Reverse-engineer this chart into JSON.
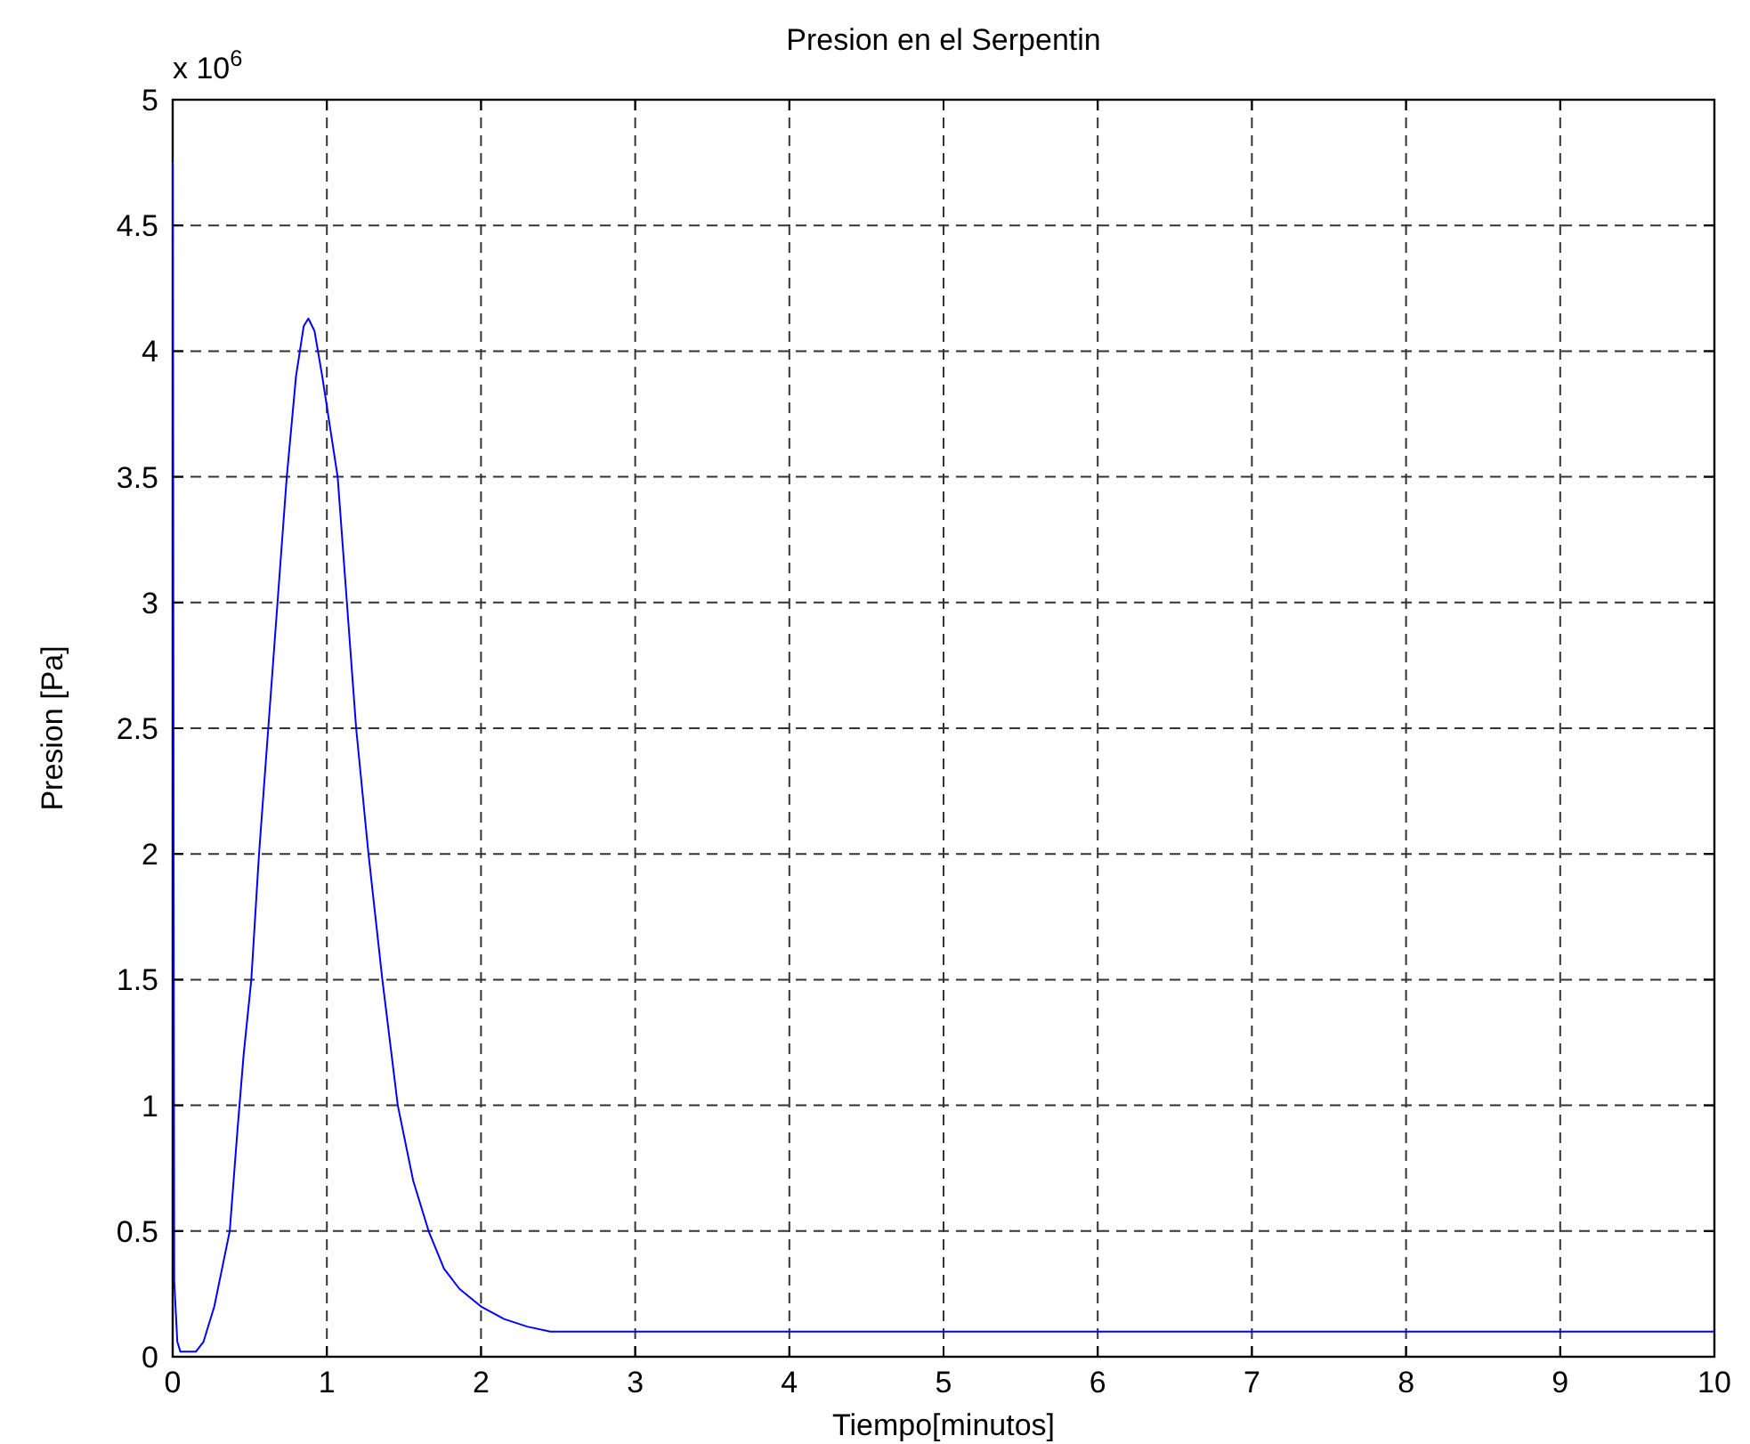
{
  "chart_data": {
    "type": "line",
    "title": "Presion en el Serpentin",
    "xlabel": "Tiempo[minutos]",
    "ylabel": "Presion [Pa]",
    "annotations": [
      "x 10$^{6}$"
    ],
    "xlim": [
      0,
      10
    ],
    "ylim": [
      0,
      5
    ],
    "xticks": [
      0,
      1,
      2,
      3,
      4,
      5,
      6,
      7,
      8,
      9,
      10
    ],
    "yticks": [
      0,
      0.5,
      1,
      1.5,
      2,
      2.5,
      3,
      3.5,
      4,
      4.5,
      5
    ],
    "grid": true,
    "line_style": "solid",
    "series": [
      {
        "color": "#0000ff",
        "x": [
          0,
          0.01,
          0.03,
          0.05,
          0.1,
          0.15,
          0.2,
          0.22,
          0.27,
          0.32,
          0.37,
          0.42,
          0.46,
          0.51,
          0.56,
          0.62,
          0.68,
          0.74,
          0.8,
          0.85,
          0.88,
          0.92,
          0.97,
          1.02,
          1.07,
          1.13,
          1.19,
          1.27,
          1.36,
          1.46,
          1.56,
          1.66,
          1.76,
          1.86,
          2.0,
          2.15,
          2.3,
          2.45,
          3,
          4,
          5,
          6,
          7,
          8,
          9,
          10
        ],
        "values": [
          4.75,
          0.3,
          0.06,
          0.02,
          0.02,
          0.02,
          0.06,
          0.1,
          0.2,
          0.35,
          0.5,
          0.9,
          1.2,
          1.5,
          2.0,
          2.5,
          3.0,
          3.5,
          3.9,
          4.1,
          4.13,
          4.08,
          3.9,
          3.7,
          3.5,
          3.0,
          2.5,
          2.0,
          1.5,
          1.0,
          0.7,
          0.5,
          0.35,
          0.27,
          0.2,
          0.15,
          0.12,
          0.1,
          0.1,
          0.1,
          0.1,
          0.1,
          0.1,
          0.1,
          0.1,
          0.1
        ]
      }
    ]
  }
}
